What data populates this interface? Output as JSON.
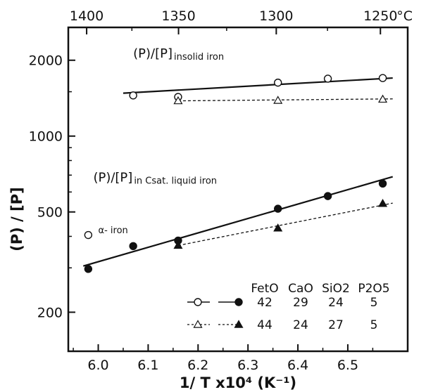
{
  "chart_data": {
    "type": "scatter",
    "xlabel": "1/ T x10⁴ (K⁻¹)",
    "ylabel": "(P) / [P]",
    "xlim": [
      5.94,
      6.62
    ],
    "ylim": [
      140,
      2700
    ],
    "yscale": "log",
    "x_ticks": [
      6.0,
      6.1,
      6.2,
      6.3,
      6.4,
      6.5
    ],
    "x_tick_labels": [
      "6.0",
      "6.1",
      "6.2",
      "6.3",
      "6.4",
      "6.5"
    ],
    "y_ticks": [
      200,
      500,
      1000,
      2000
    ],
    "y_tick_labels": [
      "200",
      "500",
      "1000",
      "2000"
    ],
    "top_axis": {
      "ticks": [
        1400,
        1350,
        1300,
        1250
      ],
      "tick_labels": [
        "1400",
        "1350",
        "1300",
        "1250"
      ],
      "unit": "°C"
    },
    "grid": false,
    "series": [
      {
        "marker": "open-circle",
        "line": "solid",
        "points": [
          [
            6.07,
            1450
          ],
          [
            6.16,
            1430
          ],
          [
            6.36,
            1630
          ],
          [
            6.46,
            1690
          ],
          [
            6.57,
            1700
          ]
        ],
        "fit": [
          [
            6.05,
            1480
          ],
          [
            6.59,
            1700
          ]
        ]
      },
      {
        "marker": "open-triangle",
        "line": "dashed",
        "points": [
          [
            6.16,
            1380
          ],
          [
            6.36,
            1385
          ],
          [
            6.57,
            1400
          ]
        ],
        "fit": [
          [
            6.16,
            1380
          ],
          [
            6.59,
            1405
          ]
        ]
      },
      {
        "marker": "filled-circle",
        "line": "solid",
        "points": [
          [
            5.98,
            297
          ],
          [
            6.07,
            366
          ],
          [
            6.16,
            385
          ],
          [
            6.36,
            515
          ],
          [
            6.46,
            578
          ],
          [
            6.57,
            648
          ]
        ],
        "fit": [
          [
            5.97,
            305
          ],
          [
            6.59,
            690
          ]
        ]
      },
      {
        "marker": "filled-triangle",
        "line": "dashed",
        "points": [
          [
            6.16,
            368
          ],
          [
            6.36,
            431
          ],
          [
            6.57,
            540
          ]
        ],
        "fit": [
          [
            6.16,
            368
          ],
          [
            6.59,
            542
          ]
        ]
      },
      {
        "marker": "open-circle",
        "line": "none",
        "points": [
          [
            5.98,
            405
          ]
        ]
      }
    ],
    "annotations": [
      {
        "text": "(P)/[P]",
        "sub": "insolid iron",
        "x": 6.07,
        "y": 2050
      },
      {
        "text": "(P)/[P]",
        "sub": "in Csat. liquid iron",
        "x": 5.99,
        "y": 660
      },
      {
        "text": "α- iron",
        "x": 6.0,
        "y": 412
      }
    ],
    "legend": {
      "position": "bottom-right",
      "headers": [
        "FetO",
        "CaO",
        "SiO2",
        "P2O5"
      ],
      "rows": [
        {
          "open": "open-circle",
          "filled": "filled-circle",
          "line": "solid",
          "values": [
            "42",
            "29",
            "24",
            "5"
          ]
        },
        {
          "open": "open-triangle",
          "filled": "filled-triangle",
          "line": "dashed",
          "values": [
            "44",
            "24",
            "27",
            "5"
          ]
        }
      ]
    }
  }
}
